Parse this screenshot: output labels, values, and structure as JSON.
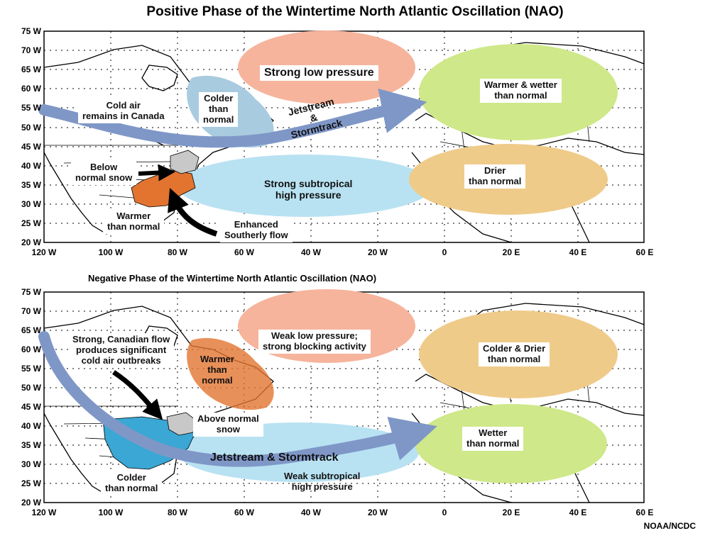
{
  "title": "Positive Phase of the Wintertime North Atlantic Oscillation (NAO)",
  "subtitle": "Negative Phase of the Wintertime North Atlantic Oscillation (NAO)",
  "credit": "NOAA/NCDC",
  "axes": {
    "y_labels": [
      "75 W",
      "70 W",
      "65 W",
      "60 W",
      "55 W",
      "50 W",
      "45 W",
      "40 W",
      "35 W",
      "30 W",
      "25 W",
      "20 W"
    ],
    "x_labels": [
      "120 W",
      "100 W",
      "80 W",
      "60 W",
      "40 W",
      "20 W",
      "0",
      "20 E",
      "40 E",
      "60 E"
    ]
  },
  "colors": {
    "low_pressure": "#f6b49c",
    "cold_region": "#a9cbe0",
    "high_pressure": "#b8e2f2",
    "warm_wet": "#cfe889",
    "dry": "#efcb8a",
    "warm_land": "#e2742f",
    "cold_land": "#3aa7d4",
    "snow": "#c8c8c8",
    "jet_arrow": "#7f97c7"
  },
  "positive": {
    "labels": {
      "strong_low": "Strong low pressure",
      "warmer_wetter_1": "Warmer & wetter",
      "warmer_wetter_2": "than normal",
      "colder_1": "Colder",
      "colder_2": "than",
      "colder_3": "normal",
      "cold_air_1": "Cold air",
      "cold_air_2": "remains in Canada",
      "jet_1": "Jetstream",
      "jet_2": "&",
      "jet_3": "Stormtrack",
      "below_snow_1": "Below",
      "below_snow_2": "normal snow",
      "subtropical_1": "Strong subtropical",
      "subtropical_2": "high pressure",
      "drier_1": "Drier",
      "drier_2": "than normal",
      "warmer_1": "Warmer",
      "warmer_2": "than normal",
      "southerly_1": "Enhanced",
      "southerly_2": "Southerly flow"
    }
  },
  "negative": {
    "labels": {
      "weak_low_1": "Weak low pressure;",
      "weak_low_2": "strong blocking activity",
      "canadian_1": "Strong, Canadian flow",
      "canadian_2": "produces significant",
      "canadian_3": "cold air outbreaks",
      "warmer_1": "Warmer",
      "warmer_2": "than",
      "warmer_3": "normal",
      "colder_drier_1": "Colder & Drier",
      "colder_drier_2": "than normal",
      "above_snow_1": "Above normal",
      "above_snow_2": "snow",
      "wetter_1": "Wetter",
      "wetter_2": "than normal",
      "jet": "Jetstream & Stormtrack",
      "weak_sub_1": "Weak subtropical",
      "weak_sub_2": "high pressure",
      "colder_1": "Colder",
      "colder_2": "than normal"
    }
  }
}
